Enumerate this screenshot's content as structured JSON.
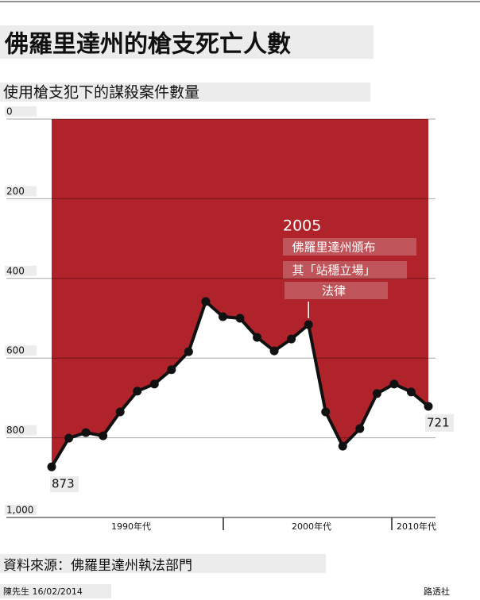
{
  "chart_data": {
    "type": "area-line",
    "title": "佛羅里達州的槍支死亡人數",
    "subtitle": "使用槍支犯下的謀殺案件數量",
    "values": [
      873,
      801,
      787,
      795,
      735,
      683,
      665,
      629,
      584,
      458,
      496,
      500,
      548,
      582,
      552,
      516,
      735,
      821,
      777,
      689,
      665,
      685,
      721
    ],
    "x_axis_labels": [
      "1990年代",
      "2000年代",
      "2010年代"
    ],
    "ylim": [
      0,
      1000
    ],
    "inverted": true,
    "yticks": [
      0,
      200,
      400,
      600,
      800,
      {
        "value": 1000,
        "label": "1,000"
      }
    ],
    "grid": true,
    "color": "#b0232a",
    "line_color": "#111111",
    "annotation": {
      "year": "2005",
      "lines": [
        "佛羅里達州頒布",
        "其「站穩立場」",
        "法律"
      ]
    },
    "source": "資料來源：佛羅里達州執法部門",
    "credit": "陳先生 16/02/2014",
    "publisher": "路透社"
  }
}
